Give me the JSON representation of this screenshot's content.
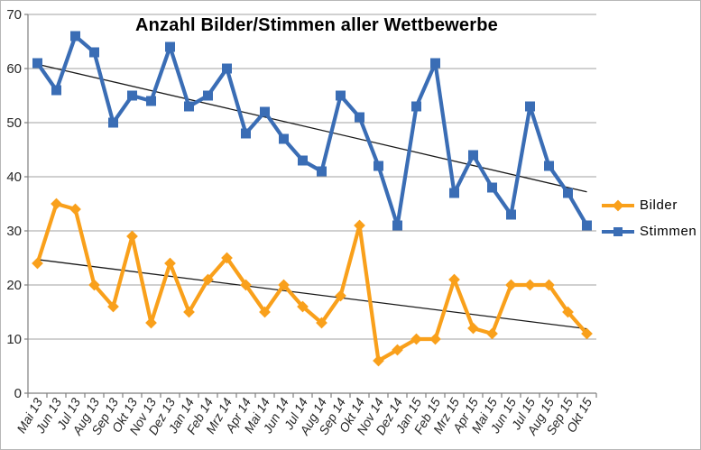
{
  "chart_data": {
    "type": "line",
    "title": "Anzahl Bilder/Stimmen aller Wettbewerbe",
    "categories": [
      "Mai 13",
      "Jun 13",
      "Jul 13",
      "Aug 13",
      "Sep 13",
      "Okt 13",
      "Nov 13",
      "Dez 13",
      "Jan 14",
      "Feb 14",
      "Mrz 14",
      "Apr 14",
      "Mai 14",
      "Jun 14",
      "Jul 14",
      "Aug 14",
      "Sep 14",
      "Okt 14",
      "Nov 14",
      "Dez 14",
      "Jan 15",
      "Feb 15",
      "Mrz 15",
      "Apr 15",
      "Mai 15",
      "Jun 15",
      "Jul 15",
      "Aug 15",
      "Sep 15",
      "Okt 15"
    ],
    "series": [
      {
        "name": "Bilder",
        "color": "#F9A01B",
        "marker": "diamond",
        "values": [
          24,
          35,
          34,
          20,
          16,
          29,
          13,
          24,
          15,
          21,
          25,
          20,
          15,
          20,
          16,
          13,
          18,
          31,
          6,
          8,
          10,
          10,
          21,
          12,
          11,
          20,
          20,
          20,
          15,
          11
        ],
        "trend": [
          24.7,
          11.9
        ]
      },
      {
        "name": "Stimmen",
        "color": "#3A6DB5",
        "marker": "square",
        "values": [
          61,
          56,
          66,
          63,
          50,
          55,
          54,
          64,
          53,
          55,
          60,
          48,
          52,
          47,
          43,
          41,
          55,
          51,
          42,
          31,
          53,
          61,
          37,
          44,
          38,
          33,
          53,
          42,
          37,
          31
        ],
        "trend": [
          60.8,
          37.2
        ]
      }
    ],
    "ylim": [
      0,
      70
    ],
    "ytick_step": 10,
    "yticks": [
      "0",
      "10",
      "20",
      "30",
      "40",
      "50",
      "60",
      "70"
    ],
    "grid": true,
    "legend_position": "right",
    "colors": {
      "gridline": "#A0A0A0",
      "axis": "#7F7F7F",
      "trendline": "#1A1A1A",
      "tick_label": "#262626",
      "title": "#000000"
    }
  }
}
